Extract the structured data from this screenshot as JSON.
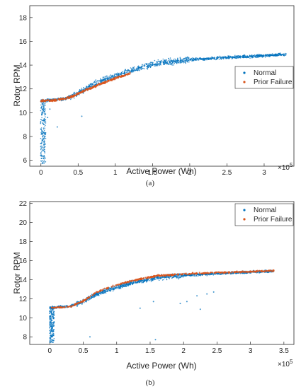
{
  "chart_data": [
    {
      "type": "scatter",
      "panel_label": "(a)",
      "xlabel": "Active Power (Wh)",
      "ylabel": "Rotor RPM",
      "x_exponent_base": "×10",
      "x_exponent_power": "5",
      "xlim": [
        -0.15,
        3.4
      ],
      "ylim": [
        5.5,
        19.0
      ],
      "x_ticks": [
        0,
        0.5,
        1,
        1.5,
        2,
        2.5,
        3
      ],
      "x_tick_labels": [
        "0",
        "0.5",
        "1",
        "1.5",
        "2",
        "2.5",
        "3"
      ],
      "y_ticks": [
        6,
        8,
        10,
        12,
        14,
        16,
        18
      ],
      "y_tick_labels": [
        "6",
        "8",
        "10",
        "12",
        "14",
        "16",
        "18"
      ],
      "grid": false,
      "legend_position": "right",
      "series": [
        {
          "name": "Normal",
          "color": "#0072BD",
          "curve": [
            [
              0.0,
              11.0
            ],
            [
              0.3,
              11.15
            ],
            [
              0.5,
              11.6
            ],
            [
              0.7,
              12.4
            ],
            [
              1.0,
              13.1
            ],
            [
              1.3,
              13.7
            ],
            [
              1.6,
              14.2
            ],
            [
              2.0,
              14.45
            ],
            [
              2.5,
              14.65
            ],
            [
              3.0,
              14.8
            ],
            [
              3.3,
              14.9
            ]
          ],
          "outliers": [
            [
              0.55,
              9.7
            ],
            [
              0.22,
              8.8
            ],
            [
              0.09,
              9.6
            ],
            [
              0.12,
              10.3
            ]
          ]
        },
        {
          "name": "Prior Failure",
          "color": "#D95319",
          "curve": [
            [
              0.0,
              11.0
            ],
            [
              0.2,
              11.05
            ],
            [
              0.4,
              11.3
            ],
            [
              0.6,
              11.9
            ],
            [
              0.8,
              12.4
            ],
            [
              1.0,
              12.9
            ],
            [
              1.2,
              13.3
            ]
          ]
        }
      ]
    },
    {
      "type": "scatter",
      "panel_label": "(b)",
      "xlabel": "Active Power (Wh)",
      "ylabel": "Rotor RPM",
      "x_exponent_base": "×10",
      "x_exponent_power": "5",
      "xlim": [
        -0.3,
        3.65
      ],
      "ylim": [
        7.2,
        22.2
      ],
      "x_ticks": [
        0,
        0.5,
        1,
        1.5,
        2,
        2.5,
        3,
        3.5
      ],
      "x_tick_labels": [
        "0",
        "0.5",
        "1",
        "1.5",
        "2",
        "2.5",
        "3",
        "3.5"
      ],
      "y_ticks": [
        8,
        10,
        12,
        14,
        16,
        18,
        20,
        22
      ],
      "y_tick_labels": [
        "8",
        "10",
        "12",
        "14",
        "16",
        "18",
        "20",
        "22"
      ],
      "grid": false,
      "legend_position": "top-right",
      "series": [
        {
          "name": "Normal",
          "color": "#0072BD",
          "curve": [
            [
              0.0,
              11.05
            ],
            [
              0.3,
              11.2
            ],
            [
              0.5,
              11.7
            ],
            [
              0.7,
              12.5
            ],
            [
              1.0,
              13.2
            ],
            [
              1.3,
              13.8
            ],
            [
              1.6,
              14.2
            ],
            [
              2.0,
              14.45
            ],
            [
              2.5,
              14.65
            ],
            [
              3.0,
              14.8
            ],
            [
              3.35,
              14.9
            ]
          ],
          "outliers": [
            [
              0.6,
              8.0
            ],
            [
              1.58,
              7.7
            ],
            [
              1.35,
              11.0
            ],
            [
              1.55,
              11.7
            ],
            [
              1.95,
              11.5
            ],
            [
              2.05,
              11.7
            ],
            [
              2.25,
              10.9
            ],
            [
              2.35,
              12.5
            ],
            [
              2.45,
              12.7
            ],
            [
              2.2,
              12.3
            ]
          ]
        },
        {
          "name": "Prior Failure",
          "color": "#D95319",
          "curve": [
            [
              0.0,
              11.05
            ],
            [
              0.3,
              11.15
            ],
            [
              0.5,
              11.75
            ],
            [
              0.7,
              12.7
            ],
            [
              1.0,
              13.45
            ],
            [
              1.3,
              14.0
            ],
            [
              1.6,
              14.4
            ],
            [
              2.0,
              14.6
            ],
            [
              2.5,
              14.75
            ],
            [
              3.0,
              14.85
            ],
            [
              3.35,
              14.95
            ]
          ]
        }
      ]
    }
  ]
}
